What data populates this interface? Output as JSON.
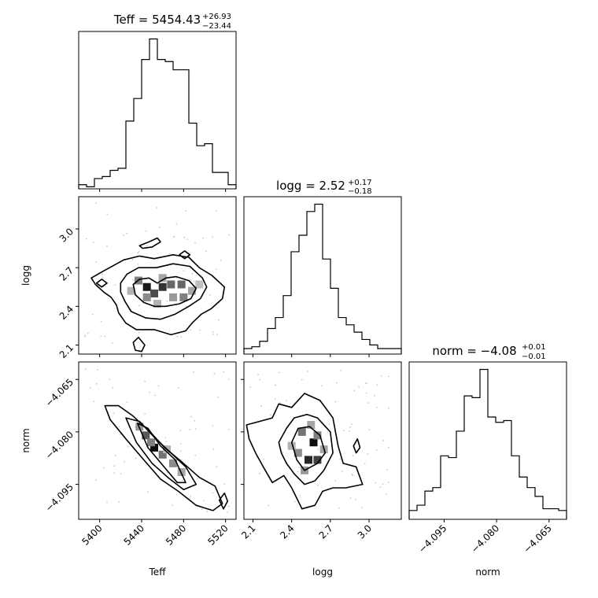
{
  "chart_data": {
    "type": "corner",
    "parameters": [
      "Teff",
      "logg",
      "norm"
    ],
    "titles": [
      {
        "param": "Teff",
        "prefix": "Teff = ",
        "value": "5454.43",
        "plus": "+26.93",
        "minus": "−23.44"
      },
      {
        "param": "logg",
        "prefix": "logg = ",
        "value": "2.52",
        "plus": "+0.17",
        "minus": "−0.18"
      },
      {
        "param": "norm",
        "prefix": "norm = ",
        "value": "−4.08",
        "plus": "+0.01",
        "minus": "−0.01"
      }
    ],
    "axis_labels": {
      "x": [
        "Teff",
        "logg",
        "norm"
      ],
      "y": [
        "logg",
        "norm"
      ]
    },
    "ranges": {
      "Teff": [
        5380,
        5530
      ],
      "logg": [
        2.03,
        3.25
      ],
      "norm": [
        -4.105,
        -4.06
      ]
    },
    "ticks": {
      "Teff": {
        "values": [
          5400,
          5440,
          5480,
          5520
        ],
        "labels": [
          "5400",
          "5440",
          "5480",
          "5520"
        ]
      },
      "logg": {
        "values": [
          2.1,
          2.4,
          2.7,
          3.0
        ],
        "labels": [
          "2.1",
          "2.4",
          "2.7",
          "3.0"
        ]
      },
      "norm": {
        "values": [
          -4.095,
          -4.08,
          -4.065
        ],
        "labels": [
          "−4.095",
          "−4.080",
          "−4.065"
        ]
      }
    },
    "histograms": {
      "Teff": {
        "edges": [
          5380,
          5387.5,
          5395,
          5402.5,
          5410,
          5417.5,
          5425,
          5432.5,
          5440,
          5447.5,
          5455,
          5462.5,
          5470,
          5477.5,
          5485,
          5492.5,
          5500,
          5507.5,
          5515,
          5522.5,
          5530
        ],
        "counts": [
          2,
          1,
          5,
          6,
          9,
          10,
          33,
          44,
          63,
          73,
          63,
          62,
          58,
          58,
          32,
          21,
          22,
          8,
          8,
          2
        ]
      },
      "logg": {
        "edges": [
          2.03,
          2.091,
          2.152,
          2.213,
          2.274,
          2.335,
          2.396,
          2.457,
          2.518,
          2.579,
          2.64,
          2.701,
          2.762,
          2.823,
          2.884,
          2.945,
          3.006,
          3.067,
          3.128,
          3.189,
          3.25
        ],
        "counts": [
          3,
          4,
          7,
          14,
          20,
          32,
          56,
          65,
          78,
          82,
          52,
          36,
          20,
          16,
          12,
          8,
          5,
          3,
          3,
          3
        ]
      },
      "norm": {
        "edges": [
          -4.105,
          -4.10275,
          -4.1005,
          -4.09825,
          -4.096,
          -4.09375,
          -4.0915,
          -4.08925,
          -4.087,
          -4.08475,
          -4.0825,
          -4.08025,
          -4.078,
          -4.07575,
          -4.0735,
          -4.07125,
          -4.069,
          -4.06675,
          -4.0645,
          -4.06225,
          -4.06
        ],
        "counts": [
          5,
          8,
          16,
          18,
          36,
          35,
          50,
          70,
          69,
          85,
          58,
          55,
          56,
          36,
          24,
          18,
          13,
          6,
          6,
          5
        ]
      }
    },
    "contours": {
      "logg_vs_Teff": [
        {
          "level": "outer",
          "points": [
            [
              5392,
              2.62
            ],
            [
              5405,
              2.68
            ],
            [
              5423,
              2.76
            ],
            [
              5438,
              2.79
            ],
            [
              5452,
              2.77
            ],
            [
              5470,
              2.8
            ],
            [
              5485,
              2.78
            ],
            [
              5495,
              2.7
            ],
            [
              5507,
              2.64
            ],
            [
              5519,
              2.55
            ],
            [
              5517,
              2.46
            ],
            [
              5506,
              2.38
            ],
            [
              5497,
              2.34
            ],
            [
              5488,
              2.27
            ],
            [
              5482,
              2.21
            ],
            [
              5468,
              2.18
            ],
            [
              5452,
              2.22
            ],
            [
              5435,
              2.22
            ],
            [
              5425,
              2.27
            ],
            [
              5418,
              2.35
            ],
            [
              5416,
              2.41
            ],
            [
              5411,
              2.47
            ],
            [
              5404,
              2.51
            ],
            [
              5396,
              2.57
            ]
          ]
        },
        {
          "level": "mid",
          "points": [
            [
              5420,
              2.58
            ],
            [
              5426,
              2.65
            ],
            [
              5437,
              2.7
            ],
            [
              5454,
              2.7
            ],
            [
              5470,
              2.73
            ],
            [
              5486,
              2.71
            ],
            [
              5498,
              2.62
            ],
            [
              5502,
              2.55
            ],
            [
              5496,
              2.46
            ],
            [
              5485,
              2.4
            ],
            [
              5472,
              2.34
            ],
            [
              5458,
              2.3
            ],
            [
              5444,
              2.31
            ],
            [
              5430,
              2.36
            ],
            [
              5424,
              2.44
            ],
            [
              5420,
              2.51
            ]
          ]
        },
        {
          "level": "inner",
          "points": [
            [
              5432,
              2.57
            ],
            [
              5438,
              2.61
            ],
            [
              5447,
              2.62
            ],
            [
              5455,
              2.58
            ],
            [
              5463,
              2.62
            ],
            [
              5473,
              2.63
            ],
            [
              5485,
              2.6
            ],
            [
              5492,
              2.54
            ],
            [
              5487,
              2.46
            ],
            [
              5476,
              2.42
            ],
            [
              5463,
              2.4
            ],
            [
              5452,
              2.4
            ],
            [
              5442,
              2.43
            ],
            [
              5434,
              2.49
            ]
          ]
        },
        {
          "level": "island-1",
          "points": [
            [
              5438,
              2.87
            ],
            [
              5447,
              2.9
            ],
            [
              5455,
              2.93
            ],
            [
              5458,
              2.9
            ],
            [
              5450,
              2.86
            ],
            [
              5441,
              2.85
            ]
          ]
        },
        {
          "level": "island-2",
          "points": [
            [
              5476,
              2.8
            ],
            [
              5481,
              2.83
            ],
            [
              5486,
              2.8
            ],
            [
              5481,
              2.77
            ]
          ]
        },
        {
          "level": "island-3",
          "points": [
            [
              5397,
              2.58
            ],
            [
              5402,
              2.61
            ],
            [
              5407,
              2.58
            ],
            [
              5402,
              2.55
            ]
          ]
        },
        {
          "level": "island-4",
          "points": [
            [
              5432,
              2.12
            ],
            [
              5437,
              2.16
            ],
            [
              5443,
              2.1
            ],
            [
              5440,
              2.05
            ],
            [
              5434,
              2.06
            ]
          ]
        }
      ],
      "norm_vs_Teff": [
        {
          "level": "outer",
          "points": [
            [
              5405,
              -4.0725
            ],
            [
              5418,
              -4.0725
            ],
            [
              5432,
              -4.0755
            ],
            [
              5448,
              -4.08
            ],
            [
              5462,
              -4.0845
            ],
            [
              5478,
              -4.0885
            ],
            [
              5495,
              -4.093
            ],
            [
              5510,
              -4.0955
            ],
            [
              5517,
              -4.1005
            ],
            [
              5508,
              -4.1025
            ],
            [
              5492,
              -4.101
            ],
            [
              5475,
              -4.097
            ],
            [
              5458,
              -4.0935
            ],
            [
              5442,
              -4.088
            ],
            [
              5425,
              -4.082
            ],
            [
              5410,
              -4.0765
            ]
          ]
        },
        {
          "level": "mid",
          "points": [
            [
              5425,
              -4.076
            ],
            [
              5438,
              -4.077
            ],
            [
              5452,
              -4.0815
            ],
            [
              5466,
              -4.0855
            ],
            [
              5482,
              -4.09
            ],
            [
              5492,
              -4.095
            ],
            [
              5480,
              -4.0965
            ],
            [
              5465,
              -4.093
            ],
            [
              5450,
              -4.089
            ],
            [
              5435,
              -4.083
            ]
          ]
        },
        {
          "level": "inner",
          "points": [
            [
              5436,
              -4.0775
            ],
            [
              5446,
              -4.079
            ],
            [
              5458,
              -4.084
            ],
            [
              5472,
              -4.088
            ],
            [
              5482,
              -4.0945
            ],
            [
              5474,
              -4.0945
            ],
            [
              5460,
              -4.0895
            ],
            [
              5446,
              -4.0845
            ]
          ]
        },
        {
          "level": "island-1",
          "points": [
            [
              5514,
              -4.0995
            ],
            [
              5519,
              -4.0975
            ],
            [
              5522,
              -4.0998
            ],
            [
              5518,
              -4.102
            ]
          ]
        }
      ],
      "norm_vs_logg": [
        {
          "level": "outer",
          "points": [
            [
              2.05,
              -4.078
            ],
            [
              2.15,
              -4.077
            ],
            [
              2.25,
              -4.076
            ],
            [
              2.3,
              -4.072
            ],
            [
              2.4,
              -4.073
            ],
            [
              2.5,
              -4.069
            ],
            [
              2.62,
              -4.071
            ],
            [
              2.72,
              -4.076
            ],
            [
              2.76,
              -4.084
            ],
            [
              2.8,
              -4.089
            ],
            [
              2.9,
              -4.09
            ],
            [
              2.95,
              -4.095
            ],
            [
              2.82,
              -4.096
            ],
            [
              2.72,
              -4.096
            ],
            [
              2.64,
              -4.097
            ],
            [
              2.58,
              -4.101
            ],
            [
              2.48,
              -4.102
            ],
            [
              2.4,
              -4.096
            ],
            [
              2.34,
              -4.0925
            ],
            [
              2.25,
              -4.0945
            ],
            [
              2.18,
              -4.09
            ],
            [
              2.12,
              -4.086
            ],
            [
              2.07,
              -4.082
            ]
          ]
        },
        {
          "level": "mid",
          "points": [
            [
              2.3,
              -4.083
            ],
            [
              2.36,
              -4.079
            ],
            [
              2.42,
              -4.076
            ],
            [
              2.52,
              -4.075
            ],
            [
              2.6,
              -4.076
            ],
            [
              2.7,
              -4.08
            ],
            [
              2.72,
              -4.086
            ],
            [
              2.65,
              -4.091
            ],
            [
              2.58,
              -4.094
            ],
            [
              2.5,
              -4.095
            ],
            [
              2.42,
              -4.092
            ],
            [
              2.36,
              -4.089
            ],
            [
              2.32,
              -4.086
            ]
          ]
        },
        {
          "level": "inner",
          "points": [
            [
              2.4,
              -4.083
            ],
            [
              2.45,
              -4.079
            ],
            [
              2.54,
              -4.0785
            ],
            [
              2.62,
              -4.081
            ],
            [
              2.66,
              -4.086
            ],
            [
              2.6,
              -4.089
            ],
            [
              2.5,
              -4.091
            ],
            [
              2.44,
              -4.088
            ]
          ]
        },
        {
          "level": "island-1",
          "points": [
            [
              2.88,
              -4.084
            ],
            [
              2.91,
              -4.082
            ],
            [
              2.93,
              -4.0845
            ],
            [
              2.9,
              -4.086
            ]
          ]
        }
      ]
    },
    "density_cells": {
      "logg_vs_Teff": [
        [
          5445,
          2.55,
          0.9
        ],
        [
          5460,
          2.55,
          0.8
        ],
        [
          5452,
          2.5,
          0.7
        ],
        [
          5468,
          2.57,
          0.6
        ],
        [
          5478,
          2.57,
          0.6
        ],
        [
          5437,
          2.6,
          0.5
        ],
        [
          5480,
          2.47,
          0.5
        ],
        [
          5470,
          2.47,
          0.4
        ],
        [
          5445,
          2.47,
          0.45
        ],
        [
          5488,
          2.52,
          0.35
        ],
        [
          5460,
          2.62,
          0.35
        ],
        [
          5455,
          2.42,
          0.3
        ],
        [
          5430,
          2.52,
          0.3
        ],
        [
          5495,
          2.57,
          0.25
        ]
      ],
      "norm_vs_Teff": [
        [
          5452,
          -4.0845,
          0.95
        ],
        [
          5444,
          -4.081,
          0.65
        ],
        [
          5460,
          -4.0865,
          0.55
        ],
        [
          5470,
          -4.089,
          0.45
        ],
        [
          5438,
          -4.0785,
          0.4
        ],
        [
          5478,
          -4.0915,
          0.35
        ],
        [
          5449,
          -4.083,
          0.5
        ],
        [
          5464,
          -4.085,
          0.3
        ]
      ],
      "norm_vs_logg": [
        [
          2.57,
          -4.083,
          0.95
        ],
        [
          2.53,
          -4.088,
          0.85
        ],
        [
          2.6,
          -4.088,
          0.75
        ],
        [
          2.48,
          -4.08,
          0.55
        ],
        [
          2.6,
          -4.081,
          0.5
        ],
        [
          2.45,
          -4.086,
          0.45
        ],
        [
          2.65,
          -4.085,
          0.35
        ],
        [
          2.5,
          -4.091,
          0.4
        ],
        [
          2.55,
          -4.078,
          0.35
        ],
        [
          2.4,
          -4.084,
          0.3
        ]
      ]
    }
  }
}
